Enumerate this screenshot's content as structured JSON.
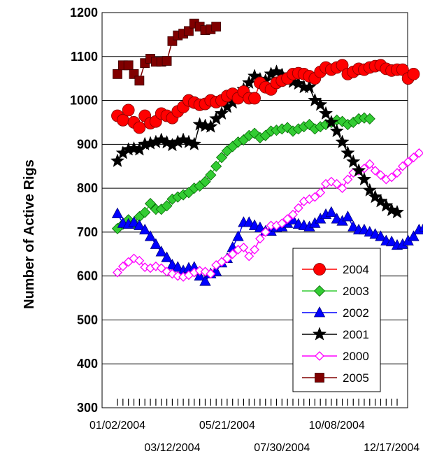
{
  "chart_data": {
    "type": "line",
    "title": "",
    "xlabel": "",
    "ylabel": "Number of Active Rigs",
    "ylim": [
      300,
      1200
    ],
    "yticks": [
      300,
      400,
      500,
      600,
      700,
      800,
      900,
      1000,
      1100,
      1200
    ],
    "x_tick_labels": [
      {
        "label": "01/02/2004",
        "week": 0
      },
      {
        "label": "03/12/2004",
        "week": 10
      },
      {
        "label": "05/21/2004",
        "week": 20
      },
      {
        "label": "07/30/2004",
        "week": 30
      },
      {
        "label": "10/08/2004",
        "week": 40
      },
      {
        "label": "12/17/2004",
        "week": 50
      }
    ],
    "weeks": 52,
    "grid": "horizontal",
    "legend_position": "bottom-right",
    "series": [
      {
        "name": "2004",
        "color": "#ff0000",
        "marker": "circle",
        "values": [
          965,
          955,
          978,
          950,
          938,
          965,
          948,
          952,
          970,
          965,
          960,
          975,
          985,
          1000,
          995,
          990,
          992,
          1000,
          996,
          1000,
          1010,
          1015,
          1005,
          1020,
          1005,
          1005,
          1040,
          1030,
          1025,
          1040,
          1045,
          1050,
          1060,
          1062,
          1060,
          1055,
          1050,
          1065,
          1075,
          1070,
          1075,
          1080,
          1060,
          1065,
          1072,
          1070,
          1075,
          1078,
          1080,
          1072,
          1068,
          1070,
          1070,
          1050,
          1060
        ]
      },
      {
        "name": "2003",
        "color": "#33cc33",
        "marker": "diamond",
        "values": [
          708,
          718,
          728,
          720,
          735,
          745,
          765,
          752,
          752,
          760,
          775,
          780,
          785,
          790,
          800,
          805,
          815,
          830,
          850,
          870,
          885,
          895,
          905,
          910,
          920,
          925,
          915,
          920,
          930,
          932,
          935,
          938,
          930,
          935,
          940,
          945,
          935,
          940,
          945,
          950,
          955,
          952,
          945,
          950,
          958,
          960,
          958
        ]
      },
      {
        "name": "2002",
        "color": "#0000ff",
        "marker": "triangle",
        "values": [
          742,
          720,
          718,
          722,
          715,
          705,
          690,
          672,
          655,
          642,
          625,
          620,
          612,
          618,
          620,
          600,
          588,
          605,
          610,
          630,
          640,
          665,
          690,
          722,
          722,
          715,
          710,
          702,
          702,
          710,
          712,
          720,
          728,
          718,
          715,
          712,
          720,
          730,
          740,
          745,
          730,
          725,
          735,
          712,
          705,
          705,
          700,
          695,
          690,
          680,
          678,
          670,
          672,
          680,
          690,
          705,
          712,
          718
        ]
      },
      {
        "name": "2001",
        "color": "#000000",
        "marker": "star",
        "values": [
          862,
          880,
          888,
          890,
          888,
          900,
          902,
          905,
          910,
          904,
          898,
          905,
          910,
          905,
          900,
          945,
          942,
          940,
          958,
          970,
          985,
          995,
          1010,
          1025,
          1040,
          1055,
          1048,
          1045,
          1060,
          1065,
          1058,
          1050,
          1042,
          1038,
          1030,
          1030,
          1000,
          990,
          970,
          950,
          930,
          905,
          880,
          860,
          840,
          820,
          795,
          780,
          770,
          760,
          750,
          745
        ]
      },
      {
        "name": "2000",
        "color": "#ff00ff",
        "marker": "open-diamond",
        "values": [
          608,
          622,
          632,
          640,
          635,
          620,
          618,
          622,
          618,
          610,
          605,
          600,
          598,
          602,
          608,
          612,
          610,
          605,
          625,
          632,
          640,
          650,
          660,
          665,
          645,
          660,
          685,
          700,
          715,
          715,
          720,
          730,
          740,
          755,
          770,
          775,
          780,
          790,
          810,
          815,
          810,
          800,
          820,
          835,
          840,
          845,
          855,
          840,
          830,
          820,
          825,
          835,
          850,
          860,
          870,
          880
        ]
      },
      {
        "name": "2005",
        "color": "#800000",
        "marker": "square",
        "values": [
          1060,
          1080,
          1080,
          1060,
          1045,
          1085,
          1095,
          1088,
          1088,
          1090,
          1135,
          1148,
          1152,
          1158,
          1175,
          1168,
          1160,
          1162,
          1168
        ]
      }
    ]
  }
}
